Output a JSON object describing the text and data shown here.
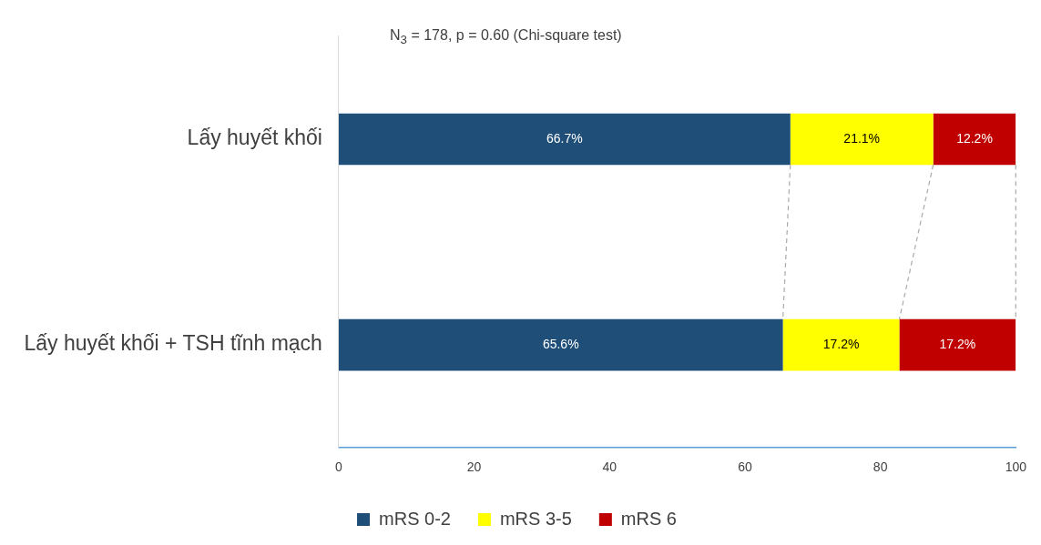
{
  "chart_data": {
    "type": "bar",
    "orientation": "horizontal",
    "stacked": true,
    "categories": [
      "Lấy huyết khối",
      "Lấy huyết khối + TSH tĩnh mạch"
    ],
    "series": [
      {
        "name": "mRS 0-2",
        "color": "#1f4e79",
        "values": [
          66.7,
          65.6
        ],
        "value_labels": [
          "66.7%",
          "65.6%"
        ]
      },
      {
        "name": "mRS 3-5",
        "color": "#ffff00",
        "values": [
          21.1,
          17.2
        ],
        "value_labels": [
          "21.1%",
          "17.2%"
        ]
      },
      {
        "name": "mRS 6",
        "color": "#c00000",
        "values": [
          12.2,
          17.2
        ],
        "value_labels": [
          "12.2%",
          "17.2%"
        ]
      }
    ],
    "xlim": [
      0,
      100
    ],
    "xticks": [
      0,
      20,
      40,
      60,
      80,
      100
    ],
    "grid": false,
    "legend": "bottom",
    "annotations": [
      "N$_{3}$ = 178, p = 0.60 (Chi-square test)"
    ]
  }
}
